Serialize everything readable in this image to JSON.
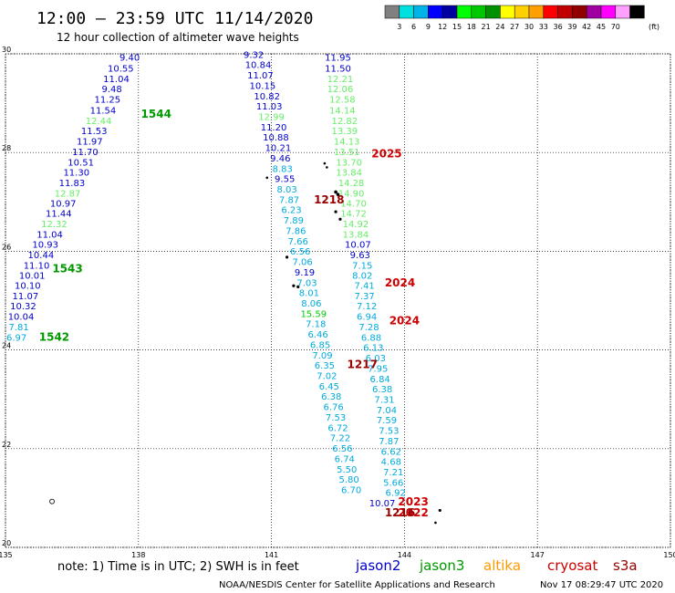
{
  "header": {
    "title": "12:00 – 23:59 UTC 11/14/2020",
    "subtitle": "12 hour collection of altimeter wave heights"
  },
  "legend": {
    "colors": [
      "#808080",
      "#00e0e0",
      "#00b4e8",
      "#0000ff",
      "#0000a0",
      "#00ff00",
      "#00c800",
      "#009000",
      "#ffff00",
      "#ffd000",
      "#ffa000",
      "#ff0000",
      "#c00000",
      "#900000",
      "#a000a0",
      "#ff00ff",
      "#ffa0ff",
      "#000000"
    ],
    "labels": [
      "3",
      "6",
      "9",
      "12",
      "15",
      "18",
      "21",
      "24",
      "27",
      "30",
      "33",
      "36",
      "39",
      "42",
      "45",
      "70"
    ],
    "unit": "(ft)"
  },
  "footer": {
    "note": "note: 1) Time is in UTC; 2) SWH is in feet",
    "missions": [
      {
        "name": "jason2",
        "color": "#0000cc"
      },
      {
        "name": "jason3",
        "color": "#009900"
      },
      {
        "name": "altika",
        "color": "#ff9900"
      },
      {
        "name": "cryosat",
        "color": "#cc0000"
      },
      {
        "name": "s3a",
        "color": "#990000"
      }
    ],
    "credit": "NOAA/NESDIS Center for Satellite Applications and Research",
    "generated": "Nov 17 08:29:47 UTC 2020"
  },
  "chart_data": {
    "type": "scatter",
    "xlim": [
      135,
      150
    ],
    "ylim": [
      20,
      30
    ],
    "xticks": [
      "135",
      "138",
      "141",
      "144",
      "147",
      "150"
    ],
    "yticks": [
      "20",
      "22",
      "24",
      "26",
      "28",
      "30"
    ],
    "grid": true,
    "series": [
      {
        "points": [
          {
            "x": 137.8,
            "y": 29.86,
            "v": "9.40",
            "c": "#0000cc"
          },
          {
            "x": 137.6,
            "y": 29.64,
            "v": "10.55",
            "c": "#0000cc"
          },
          {
            "x": 137.5,
            "y": 29.43,
            "v": "11.04",
            "c": "#0000cc"
          },
          {
            "x": 137.4,
            "y": 29.22,
            "v": "9.48",
            "c": "#0000cc"
          },
          {
            "x": 137.3,
            "y": 29.01,
            "v": "11.25",
            "c": "#0000cc"
          },
          {
            "x": 137.2,
            "y": 28.79,
            "v": "11.54",
            "c": "#0000cc"
          },
          {
            "x": 137.1,
            "y": 28.58,
            "v": "12.44",
            "c": "#66ee66"
          },
          {
            "x": 137.0,
            "y": 28.37,
            "v": "11.53",
            "c": "#0000cc"
          },
          {
            "x": 136.9,
            "y": 28.16,
            "v": "11.97",
            "c": "#0000cc"
          },
          {
            "x": 136.8,
            "y": 27.95,
            "v": "11.70",
            "c": "#0000cc"
          },
          {
            "x": 136.7,
            "y": 27.74,
            "v": "10.51",
            "c": "#0000cc"
          },
          {
            "x": 136.6,
            "y": 27.53,
            "v": "11.30",
            "c": "#0000cc"
          },
          {
            "x": 136.5,
            "y": 27.32,
            "v": "11.83",
            "c": "#0000cc"
          },
          {
            "x": 136.4,
            "y": 27.11,
            "v": "12.87",
            "c": "#66ee66"
          },
          {
            "x": 136.3,
            "y": 26.9,
            "v": "10.97",
            "c": "#0000cc"
          },
          {
            "x": 136.2,
            "y": 26.7,
            "v": "11.44",
            "c": "#0000cc"
          },
          {
            "x": 136.1,
            "y": 26.49,
            "v": "12.32",
            "c": "#66ee66"
          },
          {
            "x": 136.0,
            "y": 26.28,
            "v": "11.04",
            "c": "#0000cc"
          },
          {
            "x": 135.9,
            "y": 26.07,
            "v": "10.93",
            "c": "#0000cc"
          },
          {
            "x": 135.8,
            "y": 25.86,
            "v": "10.44",
            "c": "#0000cc"
          },
          {
            "x": 135.7,
            "y": 25.65,
            "v": "11.10",
            "c": "#0000cc"
          },
          {
            "x": 135.6,
            "y": 25.44,
            "v": "10.01",
            "c": "#0000cc"
          },
          {
            "x": 135.5,
            "y": 25.24,
            "v": "10.10",
            "c": "#0000cc"
          },
          {
            "x": 135.45,
            "y": 25.03,
            "v": "11.07",
            "c": "#0000cc"
          },
          {
            "x": 135.4,
            "y": 24.82,
            "v": "10.32",
            "c": "#0000cc"
          },
          {
            "x": 135.35,
            "y": 24.61,
            "v": "10.04",
            "c": "#0000cc"
          },
          {
            "x": 135.3,
            "y": 24.4,
            "v": "7.81",
            "c": "#00aadd"
          },
          {
            "x": 135.25,
            "y": 24.19,
            "v": "6.97",
            "c": "#00aadd"
          }
        ]
      },
      {
        "points": [
          {
            "x": 140.6,
            "y": 29.92,
            "v": "9.32",
            "c": "#0000cc"
          },
          {
            "x": 140.7,
            "y": 29.71,
            "v": "10.84",
            "c": "#0000cc"
          },
          {
            "x": 140.75,
            "y": 29.5,
            "v": "11.07",
            "c": "#0000cc"
          },
          {
            "x": 140.8,
            "y": 29.29,
            "v": "10.15",
            "c": "#0000cc"
          },
          {
            "x": 140.9,
            "y": 29.08,
            "v": "10.82",
            "c": "#0000cc"
          },
          {
            "x": 140.95,
            "y": 28.87,
            "v": "11.03",
            "c": "#0000cc"
          },
          {
            "x": 141.0,
            "y": 28.66,
            "v": "12.99",
            "c": "#66ee66"
          },
          {
            "x": 141.05,
            "y": 28.45,
            "v": "11.20",
            "c": "#0000cc"
          },
          {
            "x": 141.1,
            "y": 28.24,
            "v": "10.88",
            "c": "#0000cc"
          },
          {
            "x": 141.15,
            "y": 28.03,
            "v": "10.21",
            "c": "#0000cc"
          },
          {
            "x": 141.2,
            "y": 27.82,
            "v": "9.46",
            "c": "#0000cc"
          },
          {
            "x": 141.25,
            "y": 27.61,
            "v": "8.83",
            "c": "#00aadd"
          },
          {
            "x": 141.3,
            "y": 27.4,
            "v": "9.55",
            "c": "#0000cc"
          },
          {
            "x": 141.35,
            "y": 27.19,
            "v": "8.03",
            "c": "#00aadd"
          },
          {
            "x": 141.4,
            "y": 26.98,
            "v": "7.87",
            "c": "#00aadd"
          },
          {
            "x": 141.45,
            "y": 26.77,
            "v": "6.23",
            "c": "#00aadd"
          },
          {
            "x": 141.5,
            "y": 26.56,
            "v": "7.89",
            "c": "#00aadd"
          },
          {
            "x": 141.55,
            "y": 26.35,
            "v": "7.86",
            "c": "#00aadd"
          },
          {
            "x": 141.6,
            "y": 26.14,
            "v": "7.66",
            "c": "#00aadd"
          },
          {
            "x": 141.65,
            "y": 25.93,
            "v": "6.56",
            "c": "#00aadd"
          },
          {
            "x": 141.7,
            "y": 25.72,
            "v": "7.06",
            "c": "#00aadd"
          },
          {
            "x": 141.75,
            "y": 25.51,
            "v": "9.19",
            "c": "#0000cc"
          },
          {
            "x": 141.8,
            "y": 25.3,
            "v": "7.03",
            "c": "#00aadd"
          },
          {
            "x": 141.85,
            "y": 25.09,
            "v": "8.01",
            "c": "#00aadd"
          },
          {
            "x": 141.9,
            "y": 24.88,
            "v": "8.06",
            "c": "#00aadd"
          },
          {
            "x": 141.95,
            "y": 24.67,
            "v": "15.59",
            "c": "#00cc00"
          },
          {
            "x": 142.0,
            "y": 24.46,
            "v": "7.18",
            "c": "#00aadd"
          },
          {
            "x": 142.05,
            "y": 24.25,
            "v": "6.46",
            "c": "#00aadd"
          },
          {
            "x": 142.1,
            "y": 24.04,
            "v": "6.85",
            "c": "#00aadd"
          },
          {
            "x": 142.15,
            "y": 23.83,
            "v": "7.09",
            "c": "#00aadd"
          },
          {
            "x": 142.2,
            "y": 23.62,
            "v": "6.35",
            "c": "#00aadd"
          },
          {
            "x": 142.25,
            "y": 23.41,
            "v": "7.02",
            "c": "#00aadd"
          },
          {
            "x": 142.3,
            "y": 23.2,
            "v": "6.45",
            "c": "#00aadd"
          },
          {
            "x": 142.35,
            "y": 22.99,
            "v": "6.38",
            "c": "#00aadd"
          },
          {
            "x": 142.4,
            "y": 22.78,
            "v": "6.76",
            "c": "#00aadd"
          },
          {
            "x": 142.45,
            "y": 22.57,
            "v": "7.53",
            "c": "#00aadd"
          },
          {
            "x": 142.5,
            "y": 22.36,
            "v": "6.72",
            "c": "#00aadd"
          },
          {
            "x": 142.55,
            "y": 22.15,
            "v": "7.22",
            "c": "#00aadd"
          },
          {
            "x": 142.6,
            "y": 21.94,
            "v": "6.56",
            "c": "#00aadd"
          },
          {
            "x": 142.65,
            "y": 21.73,
            "v": "6.74",
            "c": "#00aadd"
          },
          {
            "x": 142.7,
            "y": 21.52,
            "v": "5.50",
            "c": "#00aadd"
          },
          {
            "x": 142.75,
            "y": 21.31,
            "v": "5.80",
            "c": "#00aadd"
          },
          {
            "x": 142.8,
            "y": 21.1,
            "v": "6.70",
            "c": "#00aadd"
          }
        ]
      },
      {
        "points": [
          {
            "x": 142.5,
            "y": 29.86,
            "v": "11.95",
            "c": "#0000cc"
          },
          {
            "x": 142.5,
            "y": 29.64,
            "v": "11.50",
            "c": "#0000cc"
          },
          {
            "x": 142.55,
            "y": 29.43,
            "v": "12.21",
            "c": "#66ee66"
          },
          {
            "x": 142.55,
            "y": 29.22,
            "v": "12.06",
            "c": "#66ee66"
          },
          {
            "x": 142.6,
            "y": 29.01,
            "v": "12.58",
            "c": "#66ee66"
          },
          {
            "x": 142.6,
            "y": 28.79,
            "v": "14.14",
            "c": "#66ee66"
          },
          {
            "x": 142.65,
            "y": 28.58,
            "v": "12.82",
            "c": "#66ee66"
          },
          {
            "x": 142.65,
            "y": 28.37,
            "v": "13.39",
            "c": "#66ee66"
          },
          {
            "x": 142.7,
            "y": 28.16,
            "v": "14.13",
            "c": "#66ee66"
          },
          {
            "x": 142.7,
            "y": 27.95,
            "v": "13.51",
            "c": "#66ee66"
          },
          {
            "x": 142.75,
            "y": 27.74,
            "v": "13.70",
            "c": "#66ee66"
          },
          {
            "x": 142.75,
            "y": 27.53,
            "v": "13.84",
            "c": "#66ee66"
          },
          {
            "x": 142.8,
            "y": 27.32,
            "v": "14.28",
            "c": "#66ee66"
          },
          {
            "x": 142.8,
            "y": 27.11,
            "v": "14.90",
            "c": "#66ee66"
          },
          {
            "x": 142.85,
            "y": 26.9,
            "v": "14.70",
            "c": "#66ee66"
          },
          {
            "x": 142.85,
            "y": 26.7,
            "v": "14.72",
            "c": "#66ee66"
          },
          {
            "x": 142.9,
            "y": 26.49,
            "v": "14.92",
            "c": "#66ee66"
          },
          {
            "x": 142.9,
            "y": 26.28,
            "v": "13.84",
            "c": "#66ee66"
          },
          {
            "x": 142.95,
            "y": 26.07,
            "v": "10.07",
            "c": "#0000cc"
          },
          {
            "x": 143.0,
            "y": 25.86,
            "v": "9.63",
            "c": "#0000cc"
          },
          {
            "x": 143.05,
            "y": 25.65,
            "v": "7.15",
            "c": "#00aadd"
          },
          {
            "x": 143.05,
            "y": 25.44,
            "v": "8.02",
            "c": "#00aadd"
          },
          {
            "x": 143.1,
            "y": 25.24,
            "v": "7.41",
            "c": "#00aadd"
          },
          {
            "x": 143.1,
            "y": 25.03,
            "v": "7.37",
            "c": "#00aadd"
          },
          {
            "x": 143.15,
            "y": 24.82,
            "v": "7.12",
            "c": "#00aadd"
          },
          {
            "x": 143.15,
            "y": 24.61,
            "v": "6.94",
            "c": "#00aadd"
          },
          {
            "x": 143.2,
            "y": 24.4,
            "v": "7.28",
            "c": "#00aadd"
          },
          {
            "x": 143.25,
            "y": 24.19,
            "v": "6.88",
            "c": "#00aadd"
          },
          {
            "x": 143.3,
            "y": 23.98,
            "v": "6.13",
            "c": "#00aadd"
          },
          {
            "x": 143.35,
            "y": 23.77,
            "v": "6.03",
            "c": "#00aadd"
          },
          {
            "x": 143.4,
            "y": 23.56,
            "v": "7.95",
            "c": "#00aadd"
          },
          {
            "x": 143.45,
            "y": 23.35,
            "v": "6.84",
            "c": "#00aadd"
          },
          {
            "x": 143.5,
            "y": 23.14,
            "v": "6.38",
            "c": "#00aadd"
          },
          {
            "x": 143.55,
            "y": 22.93,
            "v": "7.31",
            "c": "#00aadd"
          },
          {
            "x": 143.6,
            "y": 22.72,
            "v": "7.04",
            "c": "#00aadd"
          },
          {
            "x": 143.6,
            "y": 22.51,
            "v": "7.59",
            "c": "#00aadd"
          },
          {
            "x": 143.65,
            "y": 22.3,
            "v": "7.53",
            "c": "#00aadd"
          },
          {
            "x": 143.65,
            "y": 22.09,
            "v": "7.87",
            "c": "#00aadd"
          },
          {
            "x": 143.7,
            "y": 21.88,
            "v": "6.62",
            "c": "#00aadd"
          },
          {
            "x": 143.7,
            "y": 21.67,
            "v": "4.68",
            "c": "#00aadd"
          },
          {
            "x": 143.75,
            "y": 21.46,
            "v": "7.21",
            "c": "#00aadd"
          },
          {
            "x": 143.75,
            "y": 21.25,
            "v": "5.66",
            "c": "#00aadd"
          },
          {
            "x": 143.8,
            "y": 21.04,
            "v": "6.92",
            "c": "#00aadd"
          },
          {
            "x": 143.5,
            "y": 20.83,
            "v": "10.07",
            "c": "#0000cc"
          }
        ]
      }
    ],
    "annotations": [
      {
        "x": 138.4,
        "y": 28.71,
        "t": "1544",
        "c": "#009900"
      },
      {
        "x": 136.4,
        "y": 25.57,
        "t": "1543",
        "c": "#009900"
      },
      {
        "x": 136.1,
        "y": 24.19,
        "t": "1542",
        "c": "#009900"
      },
      {
        "x": 143.6,
        "y": 27.9,
        "t": "2025",
        "c": "#cc0000"
      },
      {
        "x": 143.9,
        "y": 25.29,
        "t": "2024",
        "c": "#cc0000"
      },
      {
        "x": 144.0,
        "y": 24.52,
        "t": "2024",
        "c": "#cc0000"
      },
      {
        "x": 142.3,
        "y": 26.97,
        "t": "1218",
        "c": "#990000"
      },
      {
        "x": 143.05,
        "y": 23.63,
        "t": "1217",
        "c": "#990000"
      },
      {
        "x": 144.2,
        "y": 20.85,
        "t": "2023",
        "c": "#cc0000"
      },
      {
        "x": 144.2,
        "y": 20.63,
        "t": "2022",
        "c": "#cc0000"
      },
      {
        "x": 143.9,
        "y": 20.63,
        "t": "1216",
        "c": "#990000"
      }
    ],
    "markers": [
      {
        "x": 142.2,
        "y": 27.78,
        "r": 1.3
      },
      {
        "x": 142.25,
        "y": 27.7,
        "r": 1.3
      },
      {
        "x": 140.9,
        "y": 27.49,
        "r": 1.3
      },
      {
        "x": 142.45,
        "y": 27.2,
        "r": 1.8
      },
      {
        "x": 142.5,
        "y": 27.15,
        "r": 1.8
      },
      {
        "x": 142.45,
        "y": 26.8,
        "r": 1.6
      },
      {
        "x": 142.55,
        "y": 26.65,
        "r": 1.6
      },
      {
        "x": 141.5,
        "y": 25.3,
        "r": 1.6
      },
      {
        "x": 141.6,
        "y": 25.28,
        "r": 1.6
      },
      {
        "x": 141.35,
        "y": 25.88,
        "r": 1.6
      },
      {
        "x": 144.8,
        "y": 20.75,
        "r": 1.6
      },
      {
        "x": 144.7,
        "y": 20.5,
        "r": 1.3
      }
    ],
    "open_markers": [
      {
        "x": 136.05,
        "y": 20.93,
        "r": 2.5
      }
    ]
  }
}
